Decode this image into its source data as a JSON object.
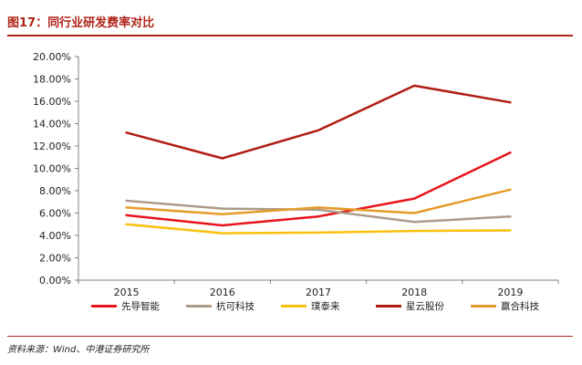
{
  "header": {
    "title": "图17：同行业研发费率对比"
  },
  "footer": {
    "source": "资料来源：Wind、中港证券研究所"
  },
  "chart_data": {
    "type": "line",
    "categories": [
      "2015",
      "2016",
      "2017",
      "2018",
      "2019"
    ],
    "ylim": [
      0,
      20
    ],
    "yticks": [
      "0.00%",
      "2.00%",
      "4.00%",
      "6.00%",
      "8.00%",
      "10.00%",
      "12.00%",
      "14.00%",
      "16.00%",
      "18.00%",
      "20.00%"
    ],
    "grid": false,
    "legend_position": "bottom",
    "series": [
      {
        "name": "先导智能",
        "color": "#e8141b",
        "values": [
          5.8,
          4.9,
          5.7,
          7.3,
          11.4
        ]
      },
      {
        "name": "杭可科技",
        "color": "#ad9b88",
        "values": [
          7.1,
          6.4,
          6.3,
          5.2,
          5.7
        ]
      },
      {
        "name": "璞泰来",
        "color": "#fbc00e",
        "values": [
          5.0,
          4.2,
          4.25,
          4.4,
          4.45
        ]
      },
      {
        "name": "星云股份",
        "color": "#b01c12",
        "values": [
          13.2,
          10.9,
          13.4,
          17.4,
          15.9
        ]
      },
      {
        "name": "赢合科技",
        "color": "#e59b2a",
        "values": [
          6.5,
          5.9,
          6.5,
          6.0,
          8.1
        ]
      }
    ]
  }
}
